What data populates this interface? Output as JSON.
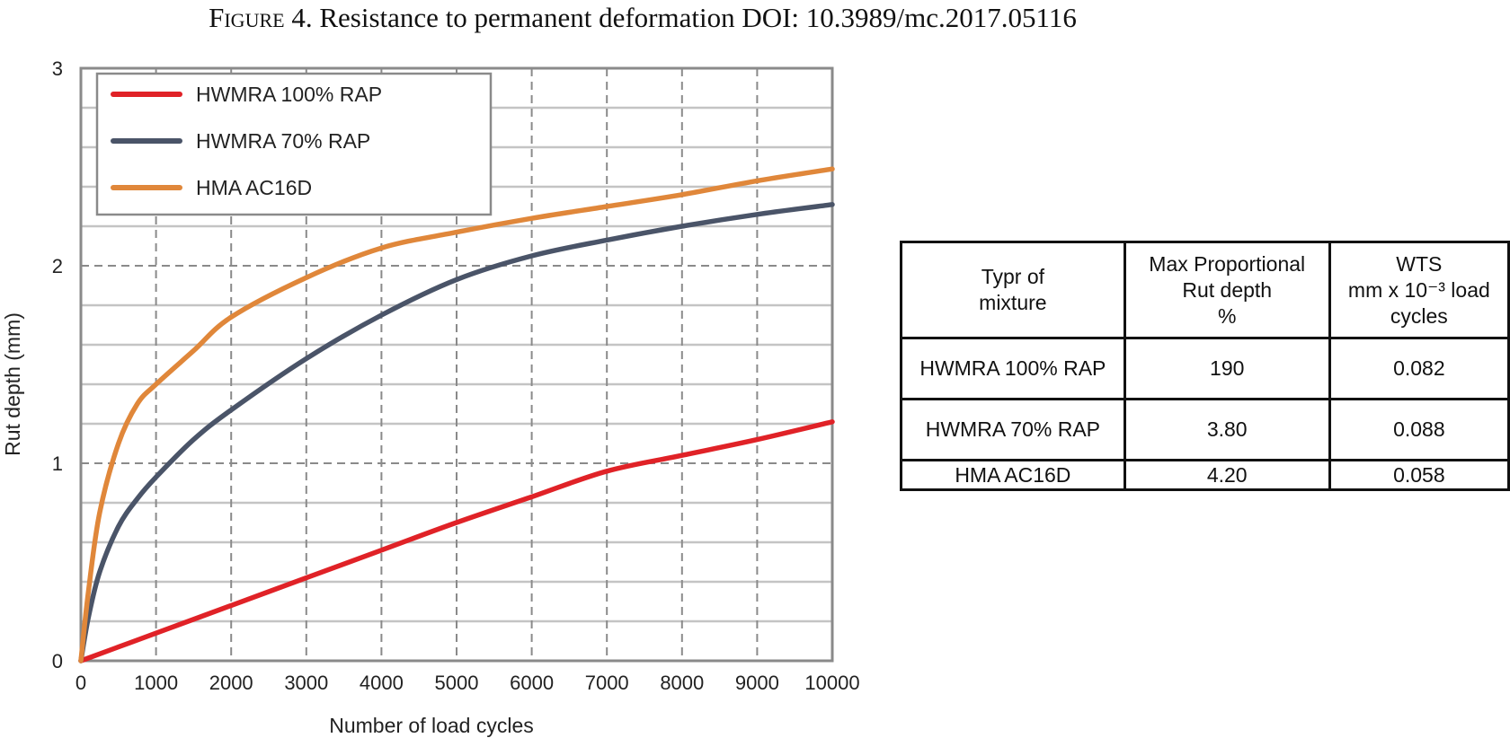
{
  "figure": {
    "label": "Figure 4.",
    "caption": "Resistance to permanent deformation DOI: 10.3989/mc.2017.05116"
  },
  "chart_data": {
    "type": "line",
    "title": "",
    "xlabel": "Number of load cycles",
    "ylabel": "Rut depth (mm)",
    "xlim": [
      0,
      10000
    ],
    "ylim": [
      0,
      3
    ],
    "xticks": [
      0,
      1000,
      2000,
      3000,
      4000,
      5000,
      6000,
      7000,
      8000,
      9000,
      10000
    ],
    "yticks": [
      0,
      1,
      2,
      3
    ],
    "grid": true,
    "legend_position": "top-left",
    "series": [
      {
        "name": "HWMRA 100% RAP",
        "color": "#e02227",
        "x": [
          0,
          500,
          1000,
          2000,
          3000,
          4000,
          5000,
          6000,
          7000,
          8000,
          9000,
          10000
        ],
        "y": [
          0,
          0.07,
          0.14,
          0.28,
          0.42,
          0.56,
          0.7,
          0.83,
          0.96,
          1.04,
          1.12,
          1.21
        ]
      },
      {
        "name": "HWMRA 70% RAP",
        "color": "#4a5468",
        "x": [
          0,
          100,
          250,
          500,
          750,
          1000,
          1500,
          2000,
          3000,
          4000,
          5000,
          6000,
          7000,
          8000,
          9000,
          10000
        ],
        "y": [
          0,
          0.22,
          0.45,
          0.68,
          0.82,
          0.93,
          1.12,
          1.27,
          1.53,
          1.75,
          1.93,
          2.05,
          2.13,
          2.2,
          2.26,
          2.31
        ]
      },
      {
        "name": "HMA AC16D",
        "color": "#e0873a",
        "x": [
          0,
          100,
          250,
          500,
          750,
          1000,
          1500,
          2000,
          3000,
          4000,
          5000,
          6000,
          7000,
          8000,
          9000,
          10000
        ],
        "y": [
          0,
          0.35,
          0.75,
          1.1,
          1.3,
          1.4,
          1.57,
          1.74,
          1.94,
          2.09,
          2.17,
          2.24,
          2.3,
          2.36,
          2.43,
          2.49
        ]
      }
    ]
  },
  "table": {
    "headers": [
      [
        "Typr of",
        "mixture"
      ],
      [
        "Max Proportional",
        "Rut depth",
        "%"
      ],
      [
        "WTS",
        "mm x 10⁻³ load",
        "cycles"
      ]
    ],
    "rows": [
      [
        "HWMRA 100% RAP",
        "190",
        "0.082"
      ],
      [
        "HWMRA 70% RAP",
        "3.80",
        "0.088"
      ],
      [
        "HMA AC16D",
        "4.20",
        "0.058"
      ]
    ]
  }
}
